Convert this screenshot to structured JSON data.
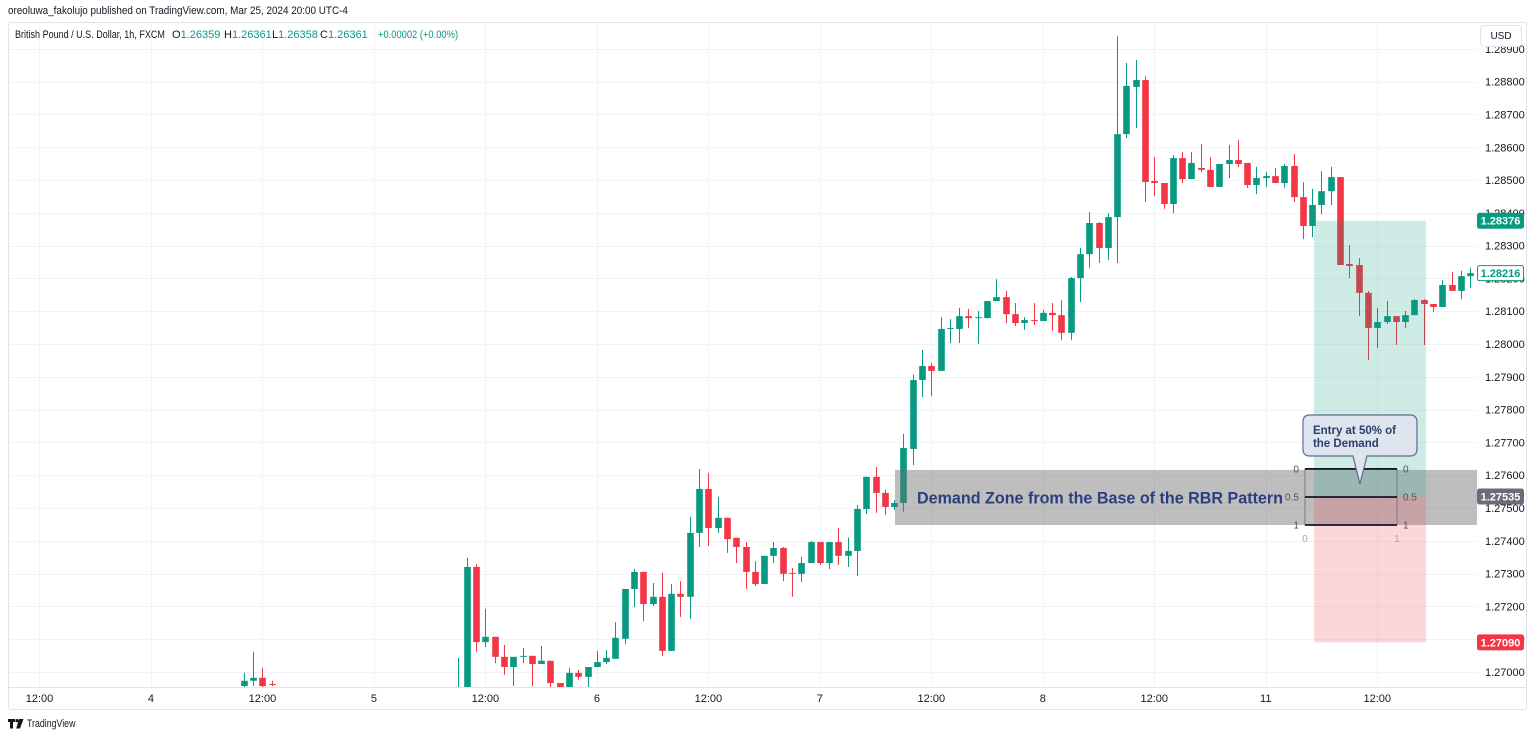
{
  "publish_line": "oreoluwa_fakolujo published on TradingView.com, Mar 25, 2024 20:00 UTC-4",
  "legend": {
    "symbol": "British Pound / U.S. Dollar, 1h, FXCM",
    "o_label": "O",
    "o": "1.26359",
    "h_label": "H",
    "h": "1.26361",
    "l_label": "L",
    "l": "1.26358",
    "c_label": "C",
    "c": "1.26361",
    "change": "+0.00002 (+0.00%)"
  },
  "currency_button": "USD",
  "footer": {
    "brand": "TradingView",
    "logo_icon": "tradingview-logo-icon"
  },
  "colors": {
    "up": "#089981",
    "down": "#f23645",
    "grid": "#f1f3f8",
    "text": "#131722",
    "zone_fill": "rgba(110,110,110,0.45)",
    "zone_text": "#2a3f7d",
    "target_fill": "rgba(8,153,129,0.2)",
    "stop_fill": "rgba(242,54,69,0.2)",
    "callout_fill": "#dfe5ee",
    "callout_border": "#5b6d8e",
    "callout_text": "#2b3e6e",
    "fib_line": "#131722",
    "fib_edge": "#787b86",
    "fib_label": "#50535e",
    "fib_axis_label": "#a3a6af"
  },
  "chart_data": {
    "type": "candlestick",
    "title": "British Pound / U.S. Dollar, 1h, FXCM",
    "xlabel": "",
    "ylabel": "USD",
    "xlim": [
      -3.39,
      154.74
    ],
    "ylim": [
      1.26954,
      1.28982
    ],
    "grid": true,
    "price_axis": {
      "ticks": [
        "1.28900",
        "1.28800",
        "1.28700",
        "1.28600",
        "1.28500",
        "1.28400",
        "1.28300",
        "1.28200",
        "1.28100",
        "1.28000",
        "1.27900",
        "1.27800",
        "1.27700",
        "1.27600",
        "1.27500",
        "1.27400",
        "1.27300",
        "1.27200",
        "1.27100",
        "1.27000"
      ]
    },
    "time_axis": {
      "labels": [
        {
          "i": 0,
          "label": "12:00"
        },
        {
          "i": 12,
          "label": "4"
        },
        {
          "i": 24,
          "label": "12:00"
        },
        {
          "i": 36,
          "label": "5"
        },
        {
          "i": 48,
          "label": "12:00"
        },
        {
          "i": 60,
          "label": "6"
        },
        {
          "i": 72,
          "label": "12:00"
        },
        {
          "i": 84,
          "label": "7"
        },
        {
          "i": 96,
          "label": "12:00"
        },
        {
          "i": 108,
          "label": "8"
        },
        {
          "i": 120,
          "label": "12:00"
        },
        {
          "i": 132,
          "label": "11"
        },
        {
          "i": 144,
          "label": "12:00"
        }
      ]
    },
    "candle_format": [
      "bar_index",
      "open",
      "high",
      "low",
      "close"
    ],
    "candles": [
      [
        22,
        1.26957,
        1.26997,
        1.26951,
        1.26973
      ],
      [
        23,
        1.26973,
        1.27061,
        1.26957,
        1.26982
      ],
      [
        24,
        1.26982,
        1.27012,
        1.26951,
        1.26957
      ],
      [
        25,
        1.26963,
        1.26973,
        1.26957,
        1.2696
      ],
      [
        45,
        1.26899,
        1.27043,
        1.2688,
        1.26915
      ],
      [
        46,
        1.26915,
        1.27348,
        1.2689,
        1.2732
      ],
      [
        47,
        1.2732,
        1.27329,
        1.27061,
        1.27091
      ],
      [
        48,
        1.27091,
        1.27192,
        1.27076,
        1.27107
      ],
      [
        49,
        1.27107,
        1.27107,
        1.27027,
        1.27046
      ],
      [
        50,
        1.27046,
        1.27082,
        1.26991,
        1.27015
      ],
      [
        51,
        1.27015,
        1.27046,
        1.26957,
        1.27046
      ],
      [
        52,
        1.27046,
        1.27073,
        1.27027,
        1.27049
      ],
      [
        53,
        1.27049,
        1.27049,
        1.26957,
        1.27024
      ],
      [
        54,
        1.27024,
        1.27079,
        1.27024,
        1.27034
      ],
      [
        55,
        1.27034,
        1.27034,
        1.26945,
        1.26966
      ],
      [
        56,
        1.26966,
        1.26966,
        1.26945,
        1.26954
      ],
      [
        57,
        1.26951,
        1.27012,
        1.26945,
        1.26997
      ],
      [
        58,
        1.26997,
        1.27006,
        1.26976,
        1.26985
      ],
      [
        59,
        1.26985,
        1.27015,
        1.26951,
        1.27015
      ],
      [
        60,
        1.27015,
        1.27064,
        1.27015,
        1.2703
      ],
      [
        61,
        1.2703,
        1.27067,
        1.27024,
        1.27043
      ],
      [
        62,
        1.2704,
        1.27152,
        1.2704,
        1.27104
      ],
      [
        63,
        1.27101,
        1.27253,
        1.27085,
        1.27253
      ],
      [
        64,
        1.27253,
        1.27314,
        1.27198,
        1.27305
      ],
      [
        65,
        1.27305,
        1.27305,
        1.27155,
        1.27207
      ],
      [
        66,
        1.27207,
        1.27271,
        1.27201,
        1.27229
      ],
      [
        67,
        1.27229,
        1.27302,
        1.27049,
        1.27064
      ],
      [
        68,
        1.27064,
        1.27268,
        1.27064,
        1.27238
      ],
      [
        69,
        1.27238,
        1.27277,
        1.27168,
        1.27229
      ],
      [
        70,
        1.27229,
        1.27473,
        1.27162,
        1.27424
      ],
      [
        71,
        1.27424,
        1.27619,
        1.27381,
        1.27558
      ],
      [
        72,
        1.27558,
        1.27607,
        1.27384,
        1.27439
      ],
      [
        73,
        1.27439,
        1.27534,
        1.27424,
        1.2747
      ],
      [
        74,
        1.2747,
        1.2747,
        1.27363,
        1.27405
      ],
      [
        75,
        1.27409,
        1.27409,
        1.27332,
        1.27381
      ],
      [
        76,
        1.27381,
        1.27396,
        1.27253,
        1.27305
      ],
      [
        77,
        1.27305,
        1.27338,
        1.27262,
        1.27268
      ],
      [
        78,
        1.27268,
        1.27354,
        1.27268,
        1.27354
      ],
      [
        79,
        1.27354,
        1.27396,
        1.27332,
        1.27378
      ],
      [
        80,
        1.27378,
        1.27381,
        1.27277,
        1.27299
      ],
      [
        81,
        1.27302,
        1.27317,
        1.27229,
        1.27299
      ],
      [
        82,
        1.27299,
        1.27351,
        1.27274,
        1.27332
      ],
      [
        83,
        1.27332,
        1.27399,
        1.27332,
        1.27396
      ],
      [
        84,
        1.27396,
        1.27396,
        1.27326,
        1.27332
      ],
      [
        85,
        1.27332,
        1.27396,
        1.27314,
        1.27396
      ],
      [
        86,
        1.27396,
        1.27439,
        1.27326,
        1.27354
      ],
      [
        87,
        1.27354,
        1.27409,
        1.2732,
        1.27369
      ],
      [
        88,
        1.27369,
        1.27509,
        1.27293,
        1.27497
      ],
      [
        89,
        1.27497,
        1.27595,
        1.27482,
        1.27595
      ],
      [
        90,
        1.27595,
        1.27625,
        1.27485,
        1.27546
      ],
      [
        91,
        1.27546,
        1.27555,
        1.27479,
        1.27503
      ],
      [
        92,
        1.27503,
        1.27524,
        1.27494,
        1.27515
      ],
      [
        93,
        1.27515,
        1.27726,
        1.27488,
        1.27683
      ],
      [
        94,
        1.2768,
        1.27906,
        1.27631,
        1.2789
      ],
      [
        95,
        1.2789,
        1.27982,
        1.27838,
        1.27933
      ],
      [
        96,
        1.27933,
        1.27942,
        1.27841,
        1.27918
      ],
      [
        97,
        1.27918,
        1.28082,
        1.27918,
        1.28046
      ],
      [
        98,
        1.28046,
        1.28076,
        1.28003,
        1.28049
      ],
      [
        99,
        1.28046,
        1.2811,
        1.28003,
        1.28085
      ],
      [
        100,
        1.28085,
        1.28107,
        1.28049,
        1.28079
      ],
      [
        101,
        1.28079,
        1.28101,
        1.28,
        1.28082
      ],
      [
        102,
        1.28079,
        1.28131,
        1.28079,
        1.28131
      ],
      [
        103,
        1.28131,
        1.28198,
        1.28131,
        1.28143
      ],
      [
        104,
        1.28143,
        1.28162,
        1.28064,
        1.28091
      ],
      [
        105,
        1.28091,
        1.28125,
        1.28055,
        1.28064
      ],
      [
        106,
        1.28064,
        1.28082,
        1.28043,
        1.28073
      ],
      [
        107,
        1.28073,
        1.28125,
        1.28058,
        1.2807
      ],
      [
        108,
        1.2807,
        1.28104,
        1.2807,
        1.28095
      ],
      [
        109,
        1.28095,
        1.28125,
        1.2804,
        1.28088
      ],
      [
        110,
        1.28088,
        1.28134,
        1.28012,
        1.28034
      ],
      [
        111,
        1.28034,
        1.28204,
        1.28012,
        1.28201
      ],
      [
        112,
        1.28201,
        1.28293,
        1.28128,
        1.28274
      ],
      [
        113,
        1.28274,
        1.28402,
        1.28232,
        1.28369
      ],
      [
        114,
        1.28369,
        1.28372,
        1.28247,
        1.28293
      ],
      [
        115,
        1.28293,
        1.28399,
        1.28256,
        1.28387
      ],
      [
        116,
        1.28387,
        1.28939,
        1.28247,
        1.2864
      ],
      [
        117,
        1.2864,
        1.28857,
        1.28628,
        1.28787
      ],
      [
        118,
        1.28784,
        1.28866,
        1.28659,
        1.28805
      ],
      [
        119,
        1.28805,
        1.28817,
        1.28433,
        1.28494
      ],
      [
        120,
        1.28497,
        1.2857,
        1.28451,
        1.28491
      ],
      [
        121,
        1.28491,
        1.28491,
        1.28412,
        1.28427
      ],
      [
        122,
        1.28427,
        1.28576,
        1.28399,
        1.28567
      ],
      [
        123,
        1.28567,
        1.28585,
        1.28491,
        1.28503
      ],
      [
        124,
        1.28503,
        1.28585,
        1.28503,
        1.28552
      ],
      [
        125,
        1.28537,
        1.2861,
        1.28524,
        1.28531
      ],
      [
        126,
        1.28531,
        1.2857,
        1.28479,
        1.28479
      ],
      [
        127,
        1.28479,
        1.28549,
        1.28479,
        1.28549
      ],
      [
        128,
        1.28549,
        1.28607,
        1.28506,
        1.28561
      ],
      [
        129,
        1.28561,
        1.28622,
        1.2854,
        1.28549
      ],
      [
        130,
        1.28552,
        1.28552,
        1.28476,
        1.28485
      ],
      [
        131,
        1.28485,
        1.2854,
        1.28457,
        1.28506
      ],
      [
        132,
        1.28506,
        1.28524,
        1.28479,
        1.28512
      ],
      [
        133,
        1.28512,
        1.28537,
        1.28491,
        1.28491
      ],
      [
        134,
        1.28491,
        1.28549,
        1.28476,
        1.28543
      ],
      [
        135,
        1.28543,
        1.28579,
        1.28433,
        1.28448
      ],
      [
        136,
        1.28448,
        1.28494,
        1.2832,
        1.2836
      ],
      [
        137,
        1.2836,
        1.28473,
        1.28326,
        1.28424
      ],
      [
        138,
        1.28424,
        1.28527,
        1.28396,
        1.28466
      ],
      [
        139,
        1.28466,
        1.2854,
        1.28424,
        1.28509
      ],
      [
        140,
        1.28509,
        1.28509,
        1.28241,
        1.28241
      ],
      [
        141,
        1.28244,
        1.28302,
        1.28201,
        1.28238
      ],
      [
        142,
        1.28241,
        1.28262,
        1.28085,
        1.28156
      ],
      [
        143,
        1.28156,
        1.28162,
        1.27951,
        1.28049
      ],
      [
        144,
        1.28049,
        1.2811,
        1.27988,
        1.28067
      ],
      [
        145,
        1.28067,
        1.28131,
        1.28061,
        1.28085
      ],
      [
        146,
        1.28085,
        1.28085,
        1.27997,
        1.28067
      ],
      [
        147,
        1.28067,
        1.28101,
        1.28049,
        1.28088
      ],
      [
        148,
        1.28088,
        1.28137,
        1.28088,
        1.28134
      ],
      [
        149,
        1.28134,
        1.28137,
        1.27997,
        1.28122
      ],
      [
        150,
        1.28122,
        1.28122,
        1.28098,
        1.28113
      ],
      [
        151,
        1.28113,
        1.28195,
        1.28113,
        1.2818
      ],
      [
        152,
        1.2818,
        1.2822,
        1.28162,
        1.28162
      ],
      [
        153,
        1.28162,
        1.28223,
        1.28137,
        1.28207
      ],
      [
        154,
        1.28207,
        1.28232,
        1.28171,
        1.28216
      ]
    ],
    "price_labels": [
      {
        "value": "1.28376",
        "role": "target",
        "bg": "#089981",
        "fg": "#ffffff",
        "border": "#089981"
      },
      {
        "value": "1.28216",
        "role": "last-price",
        "bg": "#ffffff",
        "fg": "#089981",
        "border": "#089981"
      },
      {
        "value": "1.27535",
        "role": "entry",
        "bg": "#6a6d78",
        "fg": "#ffffff",
        "border": "#6a6d78"
      },
      {
        "value": "1.27090",
        "role": "stop",
        "bg": "#f23645",
        "fg": "#ffffff",
        "border": "#f23645"
      }
    ],
    "drawings": {
      "demand_zone": {
        "start_i": 92.09,
        "top": 1.27616,
        "bottom": 1.27448,
        "label": "Demand Zone from the Base of the RBR Pattern",
        "label_i": 94.46
      },
      "long_position": {
        "start_i": 137.19,
        "end_i": 149.25,
        "target": 1.28376,
        "entry": 1.27535,
        "stop": 1.2709
      },
      "fib_box": {
        "start_i": 136.22,
        "end_i": 146.13,
        "top": 1.27619,
        "bottom": 1.27448,
        "levels": [
          "0",
          "0.5",
          "1"
        ],
        "x_labels": [
          "0",
          "1"
        ]
      },
      "callout": {
        "anchor_i": 142.14,
        "anchor_price": 1.27573,
        "lines": [
          "Entry at 50% of",
          "the Demand"
        ]
      }
    }
  }
}
